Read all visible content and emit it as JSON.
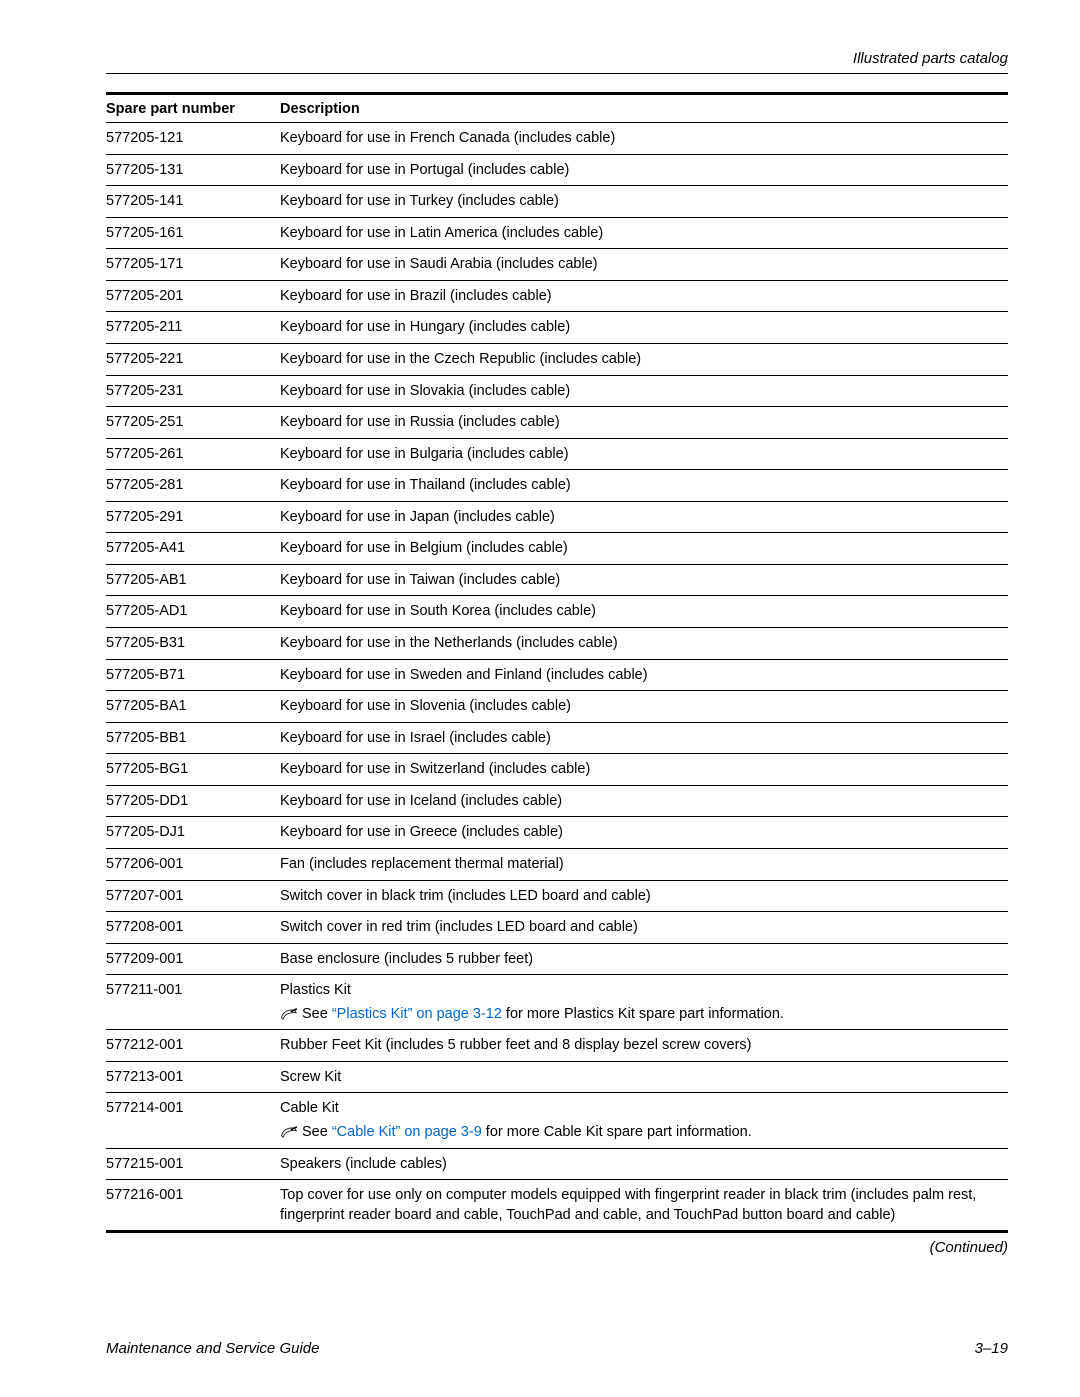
{
  "running_head": "Illustrated parts catalog",
  "table": {
    "headers": {
      "part": "Spare part number",
      "desc": "Description"
    },
    "rows": [
      {
        "part": "577205-121",
        "desc": "Keyboard for use in French Canada (includes cable)"
      },
      {
        "part": "577205-131",
        "desc": "Keyboard for use in Portugal (includes cable)"
      },
      {
        "part": "577205-141",
        "desc": "Keyboard for use in Turkey (includes cable)"
      },
      {
        "part": "577205-161",
        "desc": "Keyboard for use in Latin America (includes cable)"
      },
      {
        "part": "577205-171",
        "desc": "Keyboard for use in Saudi Arabia (includes cable)"
      },
      {
        "part": "577205-201",
        "desc": "Keyboard for use in Brazil (includes cable)"
      },
      {
        "part": "577205-211",
        "desc": "Keyboard for use in Hungary (includes cable)"
      },
      {
        "part": "577205-221",
        "desc": "Keyboard for use in the Czech Republic (includes cable)"
      },
      {
        "part": "577205-231",
        "desc": "Keyboard for use in Slovakia (includes cable)"
      },
      {
        "part": "577205-251",
        "desc": "Keyboard for use in Russia (includes cable)"
      },
      {
        "part": "577205-261",
        "desc": "Keyboard for use in Bulgaria (includes cable)"
      },
      {
        "part": "577205-281",
        "desc": "Keyboard for use in Thailand (includes cable)"
      },
      {
        "part": "577205-291",
        "desc": "Keyboard for use in Japan (includes cable)"
      },
      {
        "part": "577205-A41",
        "desc": "Keyboard for use in Belgium (includes cable)"
      },
      {
        "part": "577205-AB1",
        "desc": "Keyboard for use in Taiwan (includes cable)"
      },
      {
        "part": "577205-AD1",
        "desc": "Keyboard for use in South Korea (includes cable)"
      },
      {
        "part": "577205-B31",
        "desc": "Keyboard for use in the Netherlands (includes cable)"
      },
      {
        "part": "577205-B71",
        "desc": "Keyboard for use in Sweden and Finland (includes cable)"
      },
      {
        "part": "577205-BA1",
        "desc": "Keyboard for use in Slovenia (includes cable)"
      },
      {
        "part": "577205-BB1",
        "desc": "Keyboard for use in Israel (includes cable)"
      },
      {
        "part": "577205-BG1",
        "desc": "Keyboard for use in Switzerland (includes cable)"
      },
      {
        "part": "577205-DD1",
        "desc": "Keyboard for use in Iceland (includes cable)"
      },
      {
        "part": "577205-DJ1",
        "desc": "Keyboard for use in Greece (includes cable)"
      },
      {
        "part": "577206-001",
        "desc": "Fan (includes replacement thermal material)"
      },
      {
        "part": "577207-001",
        "desc": "Switch cover in black trim (includes LED board and cable)"
      },
      {
        "part": "577208-001",
        "desc": "Switch cover in red trim (includes LED board and cable)"
      },
      {
        "part": "577209-001",
        "desc": "Base enclosure (includes 5 rubber feet)"
      },
      {
        "part": "577211-001",
        "desc": "Plastics Kit",
        "note": {
          "pre": "See ",
          "xref": "“Plastics Kit” on page 3-12",
          "post": " for more Plastics Kit spare part information."
        }
      },
      {
        "part": "577212-001",
        "desc": "Rubber Feet Kit (includes 5 rubber feet and 8 display bezel screw covers)"
      },
      {
        "part": "577213-001",
        "desc": "Screw Kit"
      },
      {
        "part": "577214-001",
        "desc": "Cable Kit",
        "note": {
          "pre": "See ",
          "xref": "“Cable Kit” on page 3-9",
          "post": " for more Cable Kit spare part information."
        }
      },
      {
        "part": "577215-001",
        "desc": "Speakers (include cables)"
      },
      {
        "part": "577216-001",
        "desc": "Top cover for use only on computer models equipped with fingerprint reader in black trim (includes palm rest, fingerprint reader board and cable, TouchPad and cable, and TouchPad button board and cable)"
      }
    ]
  },
  "continued_label": "(Continued)",
  "footer": {
    "left": "Maintenance and Service Guide",
    "right": "3–19"
  },
  "colors": {
    "text": "#000000",
    "link": "#0066cc",
    "rule": "#000000",
    "background": "#ffffff"
  }
}
